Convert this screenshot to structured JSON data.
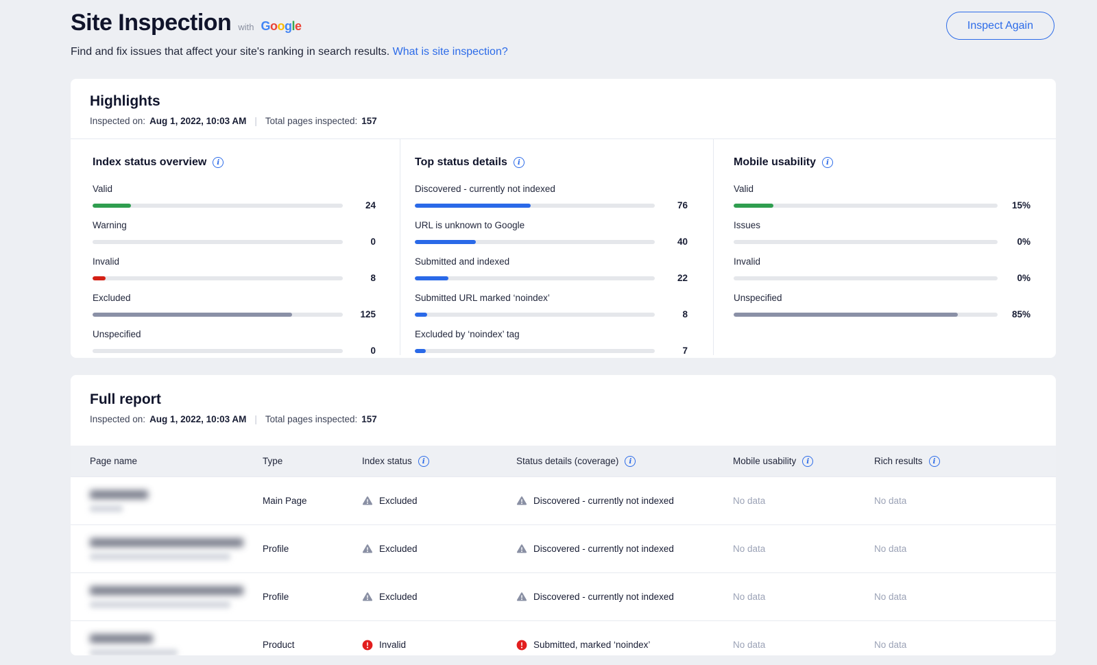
{
  "icons": {
    "info": "i"
  },
  "colors": {
    "accent": "#2C6BE8",
    "green": "#2F9E4F",
    "red": "#D42015",
    "gray_fill": "#8A90A6",
    "blue": "#2A69E8",
    "error_red": "#E21E1E",
    "warning_gray": "#8A90A4"
  },
  "page": {
    "title": "Site Inspection",
    "with_label": "with",
    "google_logo": [
      {
        "ch": "G",
        "color": "#4285F4"
      },
      {
        "ch": "o",
        "color": "#EA4335"
      },
      {
        "ch": "o",
        "color": "#FBBC05"
      },
      {
        "ch": "g",
        "color": "#4285F4"
      },
      {
        "ch": "l",
        "color": "#34A853"
      },
      {
        "ch": "e",
        "color": "#EA4335"
      }
    ],
    "subtitle": "Find and fix issues that affect your site's ranking in search results.",
    "subtitle_link": "What is site inspection?",
    "inspect_again_label": "Inspect Again"
  },
  "highlights": {
    "title": "Highlights",
    "meta": {
      "inspected_label": "Inspected on:",
      "inspected_value": "Aug 1, 2022, 10:03 AM",
      "separator": "|",
      "total_label": "Total pages inspected:",
      "total_value": "157"
    },
    "sections": [
      {
        "title": "Index status overview",
        "rows": [
          {
            "label": "Valid",
            "value": "24",
            "pct": 15.3,
            "color": "#2F9E4F"
          },
          {
            "label": "Warning",
            "value": "0",
            "pct": 0,
            "color": "#E5E7EB"
          },
          {
            "label": "Invalid",
            "value": "8",
            "pct": 5.1,
            "color": "#D42015"
          },
          {
            "label": "Excluded",
            "value": "125",
            "pct": 79.6,
            "color": "#8A90A6"
          },
          {
            "label": "Unspecified",
            "value": "0",
            "pct": 0,
            "color": "#E5E7EB"
          }
        ]
      },
      {
        "title": "Top status details",
        "rows": [
          {
            "label": "Discovered - currently not indexed",
            "value": "76",
            "pct": 48.4,
            "color": "#2A69E8"
          },
          {
            "label": "URL is unknown to Google",
            "value": "40",
            "pct": 25.5,
            "color": "#2A69E8"
          },
          {
            "label": "Submitted and indexed",
            "value": "22",
            "pct": 14.0,
            "color": "#2A69E8"
          },
          {
            "label": "Submitted URL marked ‘noindex’",
            "value": "8",
            "pct": 5.1,
            "color": "#2A69E8"
          },
          {
            "label": "Excluded by ‘noindex’ tag",
            "value": "7",
            "pct": 4.5,
            "color": "#2A69E8"
          }
        ]
      },
      {
        "title": "Mobile usability",
        "rows": [
          {
            "label": "Valid",
            "value": "15%",
            "pct": 15,
            "color": "#2F9E4F"
          },
          {
            "label": "Issues",
            "value": "0%",
            "pct": 0,
            "color": "#E5E7EB"
          },
          {
            "label": "Invalid",
            "value": "0%",
            "pct": 0,
            "color": "#E5E7EB"
          },
          {
            "label": "Unspecified",
            "value": "85%",
            "pct": 85,
            "color": "#8A90A6"
          }
        ]
      }
    ]
  },
  "full_report": {
    "title": "Full report",
    "meta": {
      "inspected_label": "Inspected on:",
      "inspected_value": "Aug 1, 2022, 10:03 AM",
      "separator": "|",
      "total_label": "Total pages inspected:",
      "total_value": "157"
    },
    "table": {
      "columns": [
        {
          "label": "Page name",
          "has_info": false
        },
        {
          "label": "Type",
          "has_info": false
        },
        {
          "label": "Index status",
          "has_info": true
        },
        {
          "label": "Status details (coverage)",
          "has_info": true
        },
        {
          "label": "Mobile usability",
          "has_info": true
        },
        {
          "label": "Rich results",
          "has_info": true
        }
      ],
      "rows": [
        {
          "page_redacted": {
            "title_w": 85,
            "sub_w": 48
          },
          "type": "Main Page",
          "index_status": {
            "icon": "warning",
            "label": "Excluded"
          },
          "status_details": {
            "icon": "warning",
            "label": "Discovered - currently not indexed"
          },
          "mobile_usability": "No data",
          "rich_results": "No data"
        },
        {
          "page_redacted": {
            "title_w": 224,
            "sub_w": 205
          },
          "type": "Profile",
          "index_status": {
            "icon": "warning",
            "label": "Excluded"
          },
          "status_details": {
            "icon": "warning",
            "label": "Discovered - currently not indexed"
          },
          "mobile_usability": "No data",
          "rich_results": "No data"
        },
        {
          "page_redacted": {
            "title_w": 224,
            "sub_w": 205
          },
          "type": "Profile",
          "index_status": {
            "icon": "warning",
            "label": "Excluded"
          },
          "status_details": {
            "icon": "warning",
            "label": "Discovered - currently not indexed"
          },
          "mobile_usability": "No data",
          "rich_results": "No data"
        },
        {
          "page_redacted": {
            "title_w": 92,
            "sub_w": 128
          },
          "type": "Product",
          "index_status": {
            "icon": "error",
            "label": "Invalid"
          },
          "status_details": {
            "icon": "error",
            "label": "Submitted, marked ‘noindex’"
          },
          "mobile_usability": "No data",
          "rich_results": "No data"
        }
      ]
    }
  }
}
